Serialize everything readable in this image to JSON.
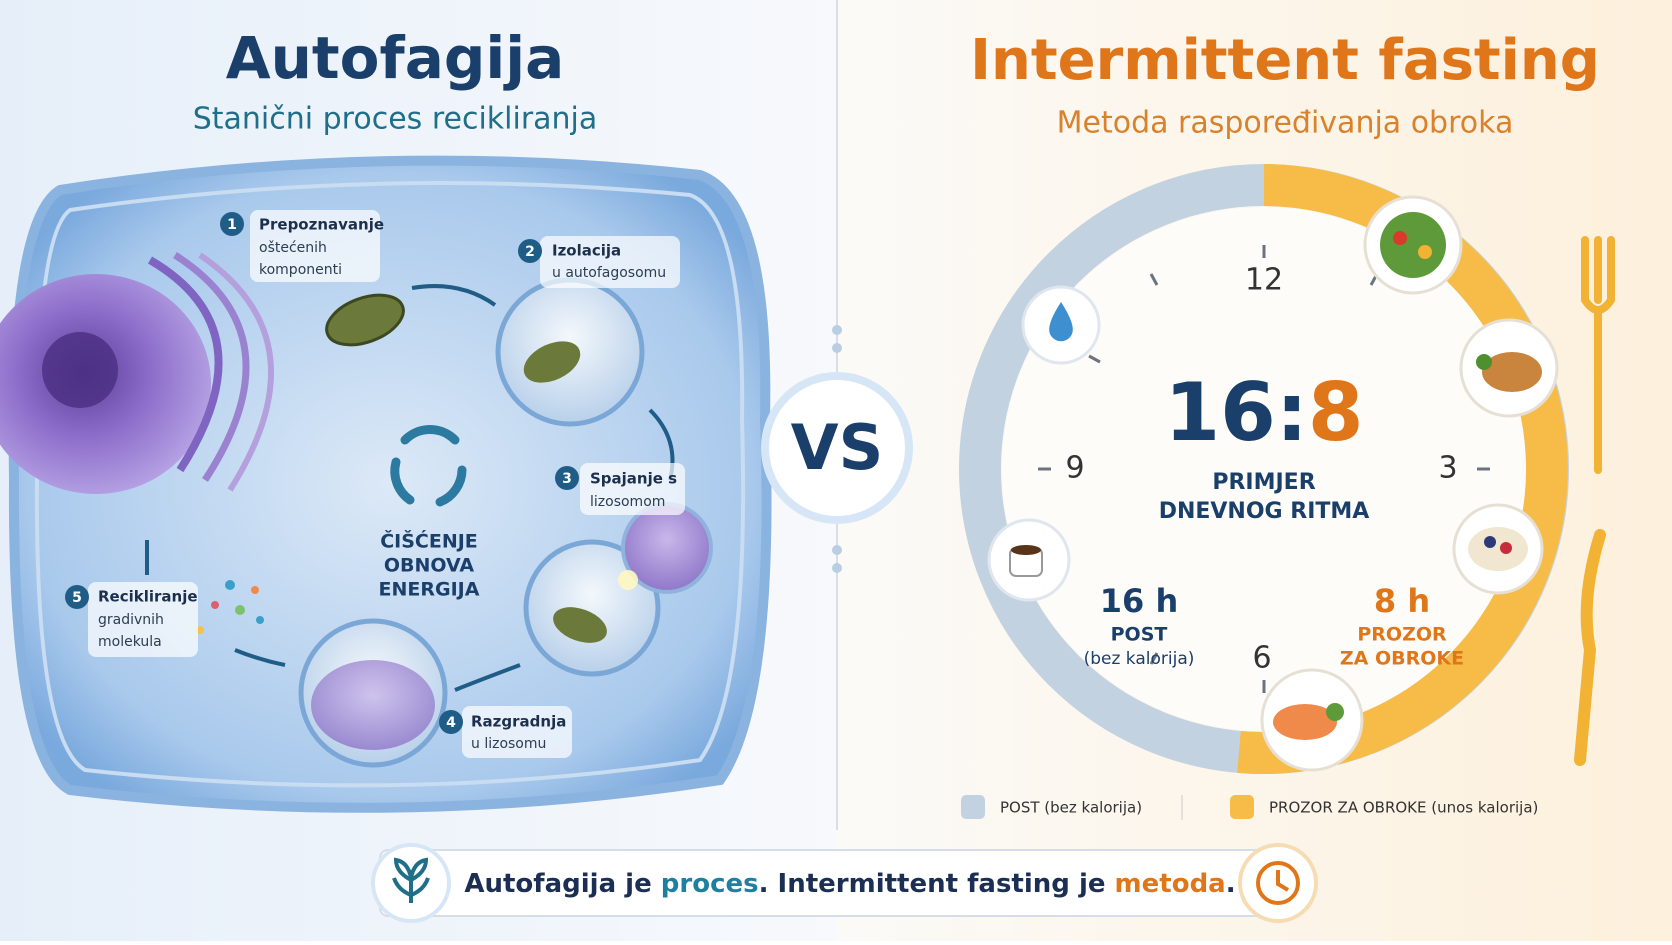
{
  "left": {
    "title": "Autofagija",
    "subtitle": "Stanični proces recikliranja",
    "steps": [
      {
        "number": "1",
        "title": "Prepoznavanje",
        "lines": [
          "oštećenih",
          "komponenti"
        ]
      },
      {
        "number": "2",
        "title": "Izolacija",
        "lines": [
          "u autofagosomu"
        ]
      },
      {
        "number": "3",
        "title": "Spajanje s",
        "lines": [
          "lizosomom"
        ]
      },
      {
        "number": "4",
        "title": "Razgradnja",
        "lines": [
          "u lizosomu"
        ]
      },
      {
        "number": "5",
        "title": "Recikliranje",
        "lines": [
          "gradivnih",
          "molekula"
        ]
      }
    ],
    "cycle": [
      "ČIŠĆENJE",
      "OBNOVA",
      "ENERGIJA"
    ]
  },
  "versus": "VS",
  "right": {
    "title": "Intermittent fasting",
    "subtitle": "Metoda raspoređivanja obroka",
    "ratio": {
      "fast": "16",
      "separator": ":",
      "eat": "8"
    },
    "caption": [
      "PRIMJER",
      "DNEVNOG RITMA"
    ],
    "hours": [
      "12",
      "3",
      "6",
      "9"
    ],
    "fasting": {
      "duration": "16 h",
      "label": "POST",
      "note": "(bez kalorija)"
    },
    "eating": {
      "duration": "8 h",
      "label": "PROZOR",
      "note": "ZA OBROKE"
    },
    "legend": [
      "POST (bez kalorija)",
      "PROZOR ZA OBROKE (unos kalorija)"
    ]
  },
  "footer": [
    "Autofagija je ",
    "proces",
    ". ",
    "Intermittent fasting je ",
    "metoda",
    "."
  ]
}
